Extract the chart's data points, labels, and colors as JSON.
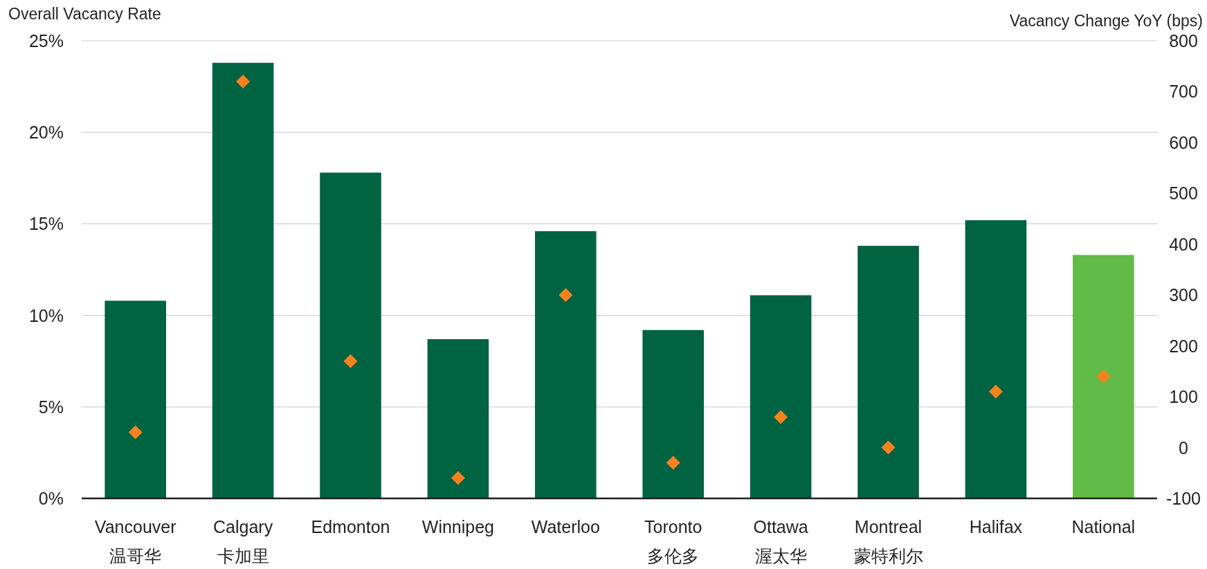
{
  "chart_data": {
    "type": "bar",
    "ylabel": "Overall Vacancy Rate",
    "y2label": "Vacancy Change YoY (bps)",
    "categories": [
      "Vancouver\n温哥华",
      "Calgary\n卡加里",
      "Edmonton",
      "Winnipeg",
      "Waterloo",
      "Toronto\n多伦多",
      "Ottawa\n渥太华",
      "Montreal\n蒙特利尔",
      "Halifax",
      "National"
    ],
    "series": [
      {
        "colors": [
          "#006341",
          "#006341",
          "#006341",
          "#006341",
          "#006341",
          "#006341",
          "#006341",
          "#006341",
          "#006341",
          "#62bb46"
        ],
        "values": [
          10.8,
          23.8,
          17.8,
          8.7,
          14.6,
          9.2,
          11.1,
          13.8,
          15.2,
          13.3
        ]
      },
      {
        "type": "scatter",
        "axis": "y2",
        "color": "#f58220",
        "values": [
          30,
          720,
          170,
          -60,
          300,
          -30,
          60,
          0,
          110,
          140
        ]
      }
    ],
    "marker": "diamond",
    "ylim": [
      0,
      25
    ],
    "yticks": [
      {
        "value": 0,
        "label": "0%"
      },
      {
        "value": 5,
        "label": "5%"
      },
      {
        "value": 10,
        "label": "10%"
      },
      {
        "value": 15,
        "label": "15%"
      },
      {
        "value": 20,
        "label": "20%"
      },
      {
        "value": 25,
        "label": "25%"
      }
    ],
    "y2lim": [
      -100,
      800
    ],
    "y2ticks": [
      -100,
      0,
      100,
      200,
      300,
      400,
      500,
      600,
      700,
      800
    ],
    "grid": "y"
  }
}
